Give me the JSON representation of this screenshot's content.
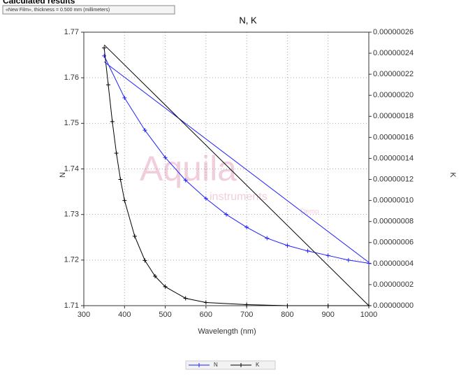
{
  "header": "Calculated results",
  "film_box": "«New Film», thickness = 0.500 mm (millimeters)",
  "watermark": [
    "Aquila",
    "instruments",
    "Demo"
  ],
  "chart_data": {
    "type": "line",
    "title": "N, K",
    "x_label": "Wavelength (nm)",
    "y_label": "N",
    "y2_label": "K",
    "xlim": [
      300,
      1000
    ],
    "xticks": [
      300,
      400,
      500,
      600,
      700,
      800,
      900,
      1000
    ],
    "ylim": [
      1.71,
      1.77
    ],
    "yticks": [
      1.71,
      1.72,
      1.73,
      1.74,
      1.75,
      1.76,
      1.77
    ],
    "y2lim": [
      0,
      2.6e-07
    ],
    "y2ticks": [
      {
        "value": 0,
        "label": "0.00000000"
      },
      {
        "value": 2e-08,
        "label": "0.00000002"
      },
      {
        "value": 4e-08,
        "label": "0.00000004"
      },
      {
        "value": 6e-08,
        "label": "0.00000006"
      },
      {
        "value": 8e-08,
        "label": "0.00000008"
      },
      {
        "value": 1e-07,
        "label": "0.00000010"
      },
      {
        "value": 1.2e-07,
        "label": "0.00000012"
      },
      {
        "value": 1.4e-07,
        "label": "0.00000014"
      },
      {
        "value": 1.6e-07,
        "label": "0.00000016"
      },
      {
        "value": 1.8e-07,
        "label": "0.00000018"
      },
      {
        "value": 2e-07,
        "label": "0.00000020"
      },
      {
        "value": 2.2e-07,
        "label": "0.00000022"
      },
      {
        "value": 2.4e-07,
        "label": "0.00000024"
      },
      {
        "value": 2.6e-07,
        "label": "0.00000026"
      }
    ],
    "grid": true,
    "legend": "bottom",
    "series": [
      {
        "name": "N",
        "color": "#1f1fff",
        "axis": "y",
        "markers": true,
        "x": [
          350,
          400,
          450,
          500,
          550,
          600,
          650,
          700,
          750,
          800,
          850,
          900,
          950,
          1000
        ],
        "values": [
          1.7648,
          1.7556,
          1.7485,
          1.7425,
          1.7375,
          1.7335,
          1.73,
          1.7272,
          1.7248,
          1.7232,
          1.722,
          1.721,
          1.72,
          1.7193
        ]
      },
      {
        "name": "K",
        "color": "#000000",
        "axis": "y2",
        "markers": true,
        "x": [
          350,
          360,
          370,
          380,
          390,
          400,
          425,
          450,
          475,
          500,
          550,
          600,
          700,
          800,
          900,
          1000
        ],
        "values": [
          2.45e-07,
          2.1e-07,
          1.75e-07,
          1.45e-07,
          1.2e-07,
          1e-07,
          6.6e-08,
          4.3e-08,
          2.8e-08,
          1.8e-08,
          7e-09,
          3e-09,
          1e-09,
          0,
          0,
          0
        ]
      },
      {
        "color": "#1f1fff",
        "axis": "y",
        "markers": false,
        "x": [
          350,
          1000
        ],
        "values": [
          1.7635,
          1.7195
        ]
      },
      {
        "color": "#000000",
        "axis": "y2",
        "markers": false,
        "x": [
          350,
          1000
        ],
        "values": [
          2.48e-07,
          0
        ]
      }
    ]
  }
}
